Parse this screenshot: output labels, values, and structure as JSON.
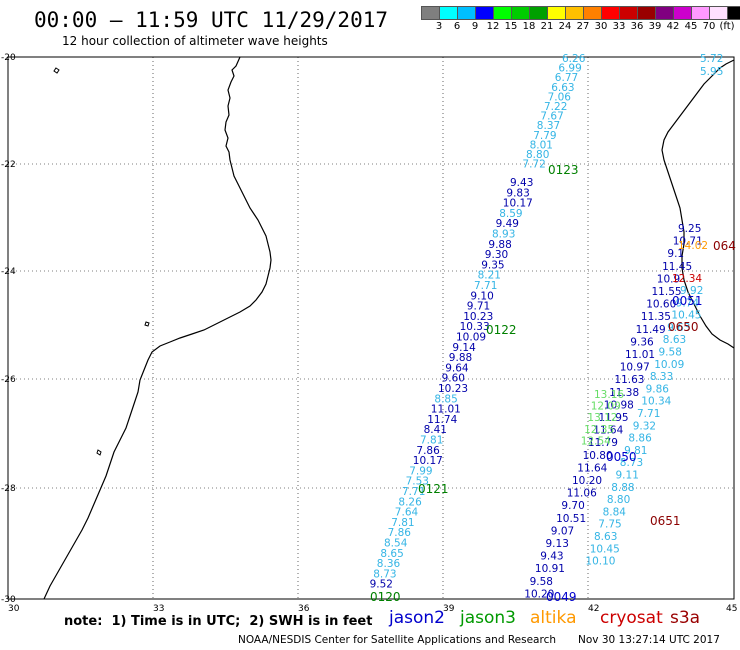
{
  "header": {
    "title": "00:00 – 11:59 UTC 11/29/2017",
    "subtitle": "12 hour collection of altimeter wave heights"
  },
  "colorbar": {
    "colors": [
      "#7f7f7f",
      "#00ffff",
      "#00bfff",
      "#0000ff",
      "#00ff00",
      "#00cc00",
      "#00a000",
      "#ffff00",
      "#ffc000",
      "#ff8000",
      "#ff0000",
      "#cc0000",
      "#990000",
      "#800080",
      "#cc00cc",
      "#ff99ff",
      "#ffe0ff",
      "#000000"
    ],
    "ticks": [
      "3",
      "6",
      "9",
      "12",
      "15",
      "18",
      "21",
      "24",
      "27",
      "30",
      "33",
      "36",
      "39",
      "42",
      "45",
      "70",
      "(ft)"
    ]
  },
  "axes": {
    "x_ticks": [
      "30",
      "33",
      "36",
      "39",
      "42",
      "45"
    ],
    "y_ticks": [
      "-20",
      "-22",
      "-24",
      "-26",
      "-28",
      "-30"
    ]
  },
  "tracks": [
    {
      "color": "#35b5e5",
      "labels": [
        "6.26",
        "6.99",
        "6.77",
        "6.63",
        "7.06",
        "7.22",
        "7.67",
        "8.37",
        "7.79",
        "8.01",
        "8.80",
        "7.72"
      ]
    },
    {
      "color": "#0000aa",
      "labels": [
        "9.43",
        "9.83",
        "10.17",
        "8.59",
        "9.49",
        "8.93",
        "9.88",
        "9.30",
        "9.35",
        "8.21",
        "7.71",
        "9.10",
        "9.71",
        "10.23",
        "10.33",
        "10.09",
        "9.14",
        "9.88",
        "9.64",
        "9.60",
        "10.23",
        "8.85",
        "11.01",
        "11.74",
        "8.41",
        "7.81",
        "7.86",
        "10.17",
        "7.99",
        "7.53",
        "7.71",
        "8.26",
        "7.64",
        "7.81",
        "7.86",
        "8.54",
        "8.65",
        "8.36",
        "8.73",
        "9.52"
      ]
    }
  ],
  "pass_labels": [
    {
      "text": "0123",
      "color": "#008000"
    },
    {
      "text": "0122",
      "color": "#008000"
    },
    {
      "text": "0121",
      "color": "#008000"
    },
    {
      "text": "0120",
      "color": "#008000"
    },
    {
      "text": "0049",
      "color": "#0000cc"
    },
    {
      "text": "0050",
      "color": "#0000cc"
    },
    {
      "text": "0051",
      "color": "#0000cc"
    },
    {
      "text": "0650",
      "color": "#8b0000"
    },
    {
      "text": "0651",
      "color": "#8b0000"
    },
    {
      "text": "064",
      "color": "#8b0000"
    }
  ],
  "right_tracks": {
    "jason2_labels": [
      "9.25",
      "10.71",
      "9.1",
      "11.45",
      "10.9",
      "11.55",
      "10.60",
      "11.35",
      "11.49",
      "9.36",
      "11.01",
      "10.97",
      "11.63",
      "11.38",
      "10.98",
      "11.95",
      "11.64",
      "11.79",
      "10.80",
      "11.64",
      "10.20",
      "11.06",
      "9.70",
      "10.51",
      "9.07",
      "9.13",
      "9.43",
      "10.91",
      "9.58",
      "10.20"
    ],
    "jason3_labels": [
      "13.16",
      "12.09",
      "13.12",
      "12.35",
      "12.54"
    ],
    "cyan_labels": [
      "9.92",
      "9.74",
      "10.45",
      "9.63",
      "8.63",
      "9.58",
      "10.09",
      "8.33",
      "9.86",
      "10.34",
      "7.71",
      "9.32",
      "8.86",
      "9.81",
      "8.73",
      "9.11",
      "8.88",
      "8.80",
      "8.84",
      "7.75",
      "8.63",
      "10.45",
      "10.10"
    ],
    "top_right": [
      "5.72",
      "5.95"
    ],
    "altika": "14.02",
    "cryosat": "12.34"
  },
  "legend": [
    {
      "name": "jason2",
      "color": "#0000cc"
    },
    {
      "name": "jason3",
      "color": "#009900"
    },
    {
      "name": "altika",
      "color": "#ff9900"
    },
    {
      "name": "cryosat",
      "color": "#cc0000"
    },
    {
      "name": "s3a",
      "color": "#990000"
    }
  ],
  "footer": {
    "note": "note:  1) Time is in UTC;  2) SWH is in feet",
    "credit": "NOAA/NESDIS Center for Satellite Applications and Research",
    "timestamp": "Nov 30 13:27:14 UTC 2017"
  }
}
